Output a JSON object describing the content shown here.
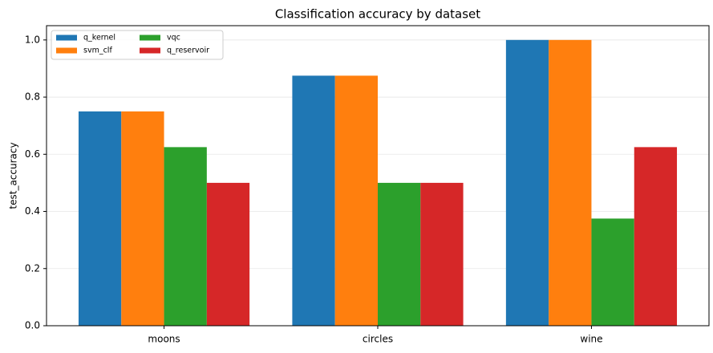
{
  "chart_data": {
    "type": "bar",
    "title": "Classification accuracy by dataset",
    "ylabel": "test_accuracy",
    "categories": [
      "moons",
      "circles",
      "wine"
    ],
    "series": [
      {
        "name": "q_kernel",
        "color": "#1f77b4",
        "values": [
          0.75,
          0.875,
          1.0
        ]
      },
      {
        "name": "svm_clf",
        "color": "#ff7f0e",
        "values": [
          0.75,
          0.875,
          1.0
        ]
      },
      {
        "name": "vqc",
        "color": "#2ca02c",
        "values": [
          0.625,
          0.5,
          0.375
        ]
      },
      {
        "name": "q_reservoir",
        "color": "#d62728",
        "values": [
          0.5,
          0.5,
          0.625
        ]
      }
    ],
    "ylim": [
      0,
      1.05
    ],
    "yticks": [
      {
        "value": 0,
        "label": "0.0"
      },
      0.2,
      0.4,
      0.6,
      0.8,
      {
        "value": 1,
        "label": "1.0"
      }
    ],
    "grid": true,
    "legend": "upper-left"
  }
}
